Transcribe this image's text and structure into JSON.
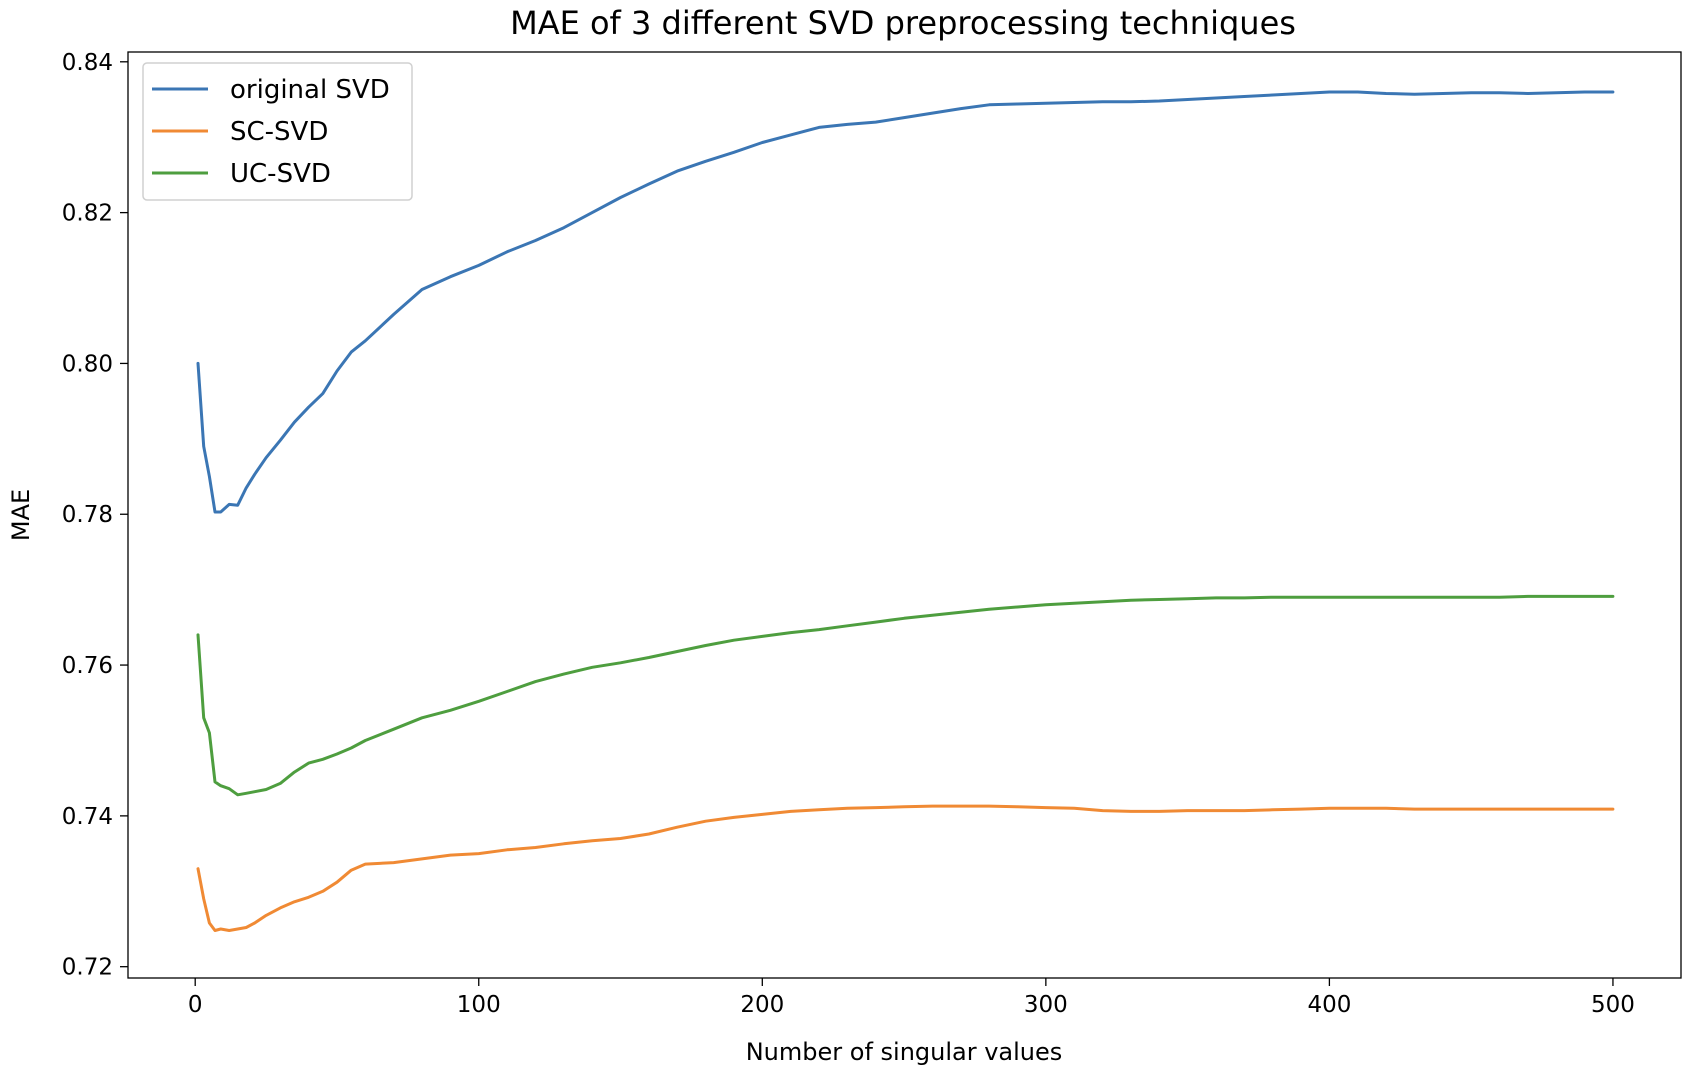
{
  "chart_data": {
    "type": "line",
    "title": "MAE of 3 different SVD preprocessing techniques",
    "xlabel": "Number of singular values",
    "ylabel": "MAE",
    "xlim": [
      -23.7,
      524
    ],
    "ylim": [
      0.7185,
      0.8413
    ],
    "x_ticks": [
      0,
      100,
      200,
      300,
      400,
      500
    ],
    "x_tick_labels": [
      "0",
      "100",
      "200",
      "300",
      "400",
      "500"
    ],
    "y_ticks": [
      0.72,
      0.74,
      0.76,
      0.78,
      0.8,
      0.82,
      0.84
    ],
    "y_tick_labels": [
      "0.72",
      "0.74",
      "0.76",
      "0.78",
      "0.80",
      "0.82",
      "0.84"
    ],
    "grid": false,
    "legend_position": "upper-left",
    "series": [
      {
        "name": "original SVD",
        "color": "#3b76b4",
        "x": [
          1,
          3,
          5,
          7,
          9,
          12,
          15,
          18,
          21,
          25,
          30,
          35,
          40,
          45,
          50,
          55,
          60,
          70,
          80,
          90,
          100,
          110,
          120,
          130,
          140,
          150,
          160,
          170,
          180,
          190,
          200,
          210,
          220,
          230,
          240,
          250,
          260,
          270,
          280,
          290,
          300,
          310,
          320,
          330,
          340,
          350,
          360,
          370,
          380,
          390,
          400,
          410,
          420,
          430,
          440,
          450,
          460,
          470,
          480,
          490,
          500
        ],
        "values": [
          0.8,
          0.789,
          0.785,
          0.7803,
          0.7803,
          0.7813,
          0.7812,
          0.7835,
          0.7853,
          0.7875,
          0.7898,
          0.7922,
          0.7942,
          0.796,
          0.799,
          0.8015,
          0.803,
          0.8065,
          0.8098,
          0.8115,
          0.813,
          0.8148,
          0.8163,
          0.818,
          0.82,
          0.822,
          0.8238,
          0.8255,
          0.8268,
          0.828,
          0.8293,
          0.8303,
          0.8313,
          0.8317,
          0.832,
          0.8326,
          0.8332,
          0.8338,
          0.8343,
          0.8344,
          0.8345,
          0.8346,
          0.8347,
          0.8347,
          0.8348,
          0.835,
          0.8352,
          0.8354,
          0.8356,
          0.8358,
          0.836,
          0.836,
          0.8358,
          0.8357,
          0.8358,
          0.8359,
          0.8359,
          0.8358,
          0.8359,
          0.836,
          0.836
        ]
      },
      {
        "name": "SC-SVD",
        "color": "#f08a34",
        "x": [
          1,
          3,
          5,
          7,
          9,
          12,
          15,
          18,
          21,
          25,
          30,
          35,
          40,
          45,
          50,
          55,
          60,
          70,
          80,
          90,
          100,
          110,
          120,
          130,
          140,
          150,
          160,
          170,
          180,
          190,
          200,
          210,
          220,
          230,
          240,
          250,
          260,
          270,
          280,
          290,
          300,
          310,
          320,
          330,
          340,
          350,
          360,
          370,
          380,
          390,
          400,
          410,
          420,
          430,
          440,
          450,
          460,
          470,
          480,
          490,
          500
        ],
        "values": [
          0.733,
          0.729,
          0.7258,
          0.7248,
          0.725,
          0.7248,
          0.725,
          0.7252,
          0.7258,
          0.7268,
          0.7278,
          0.7286,
          0.7292,
          0.73,
          0.7312,
          0.7328,
          0.7336,
          0.7338,
          0.7343,
          0.7348,
          0.735,
          0.7355,
          0.7358,
          0.7363,
          0.7367,
          0.737,
          0.7376,
          0.7385,
          0.7393,
          0.7398,
          0.7402,
          0.7406,
          0.7408,
          0.741,
          0.7411,
          0.7412,
          0.7413,
          0.7413,
          0.7413,
          0.7412,
          0.7411,
          0.741,
          0.7407,
          0.7406,
          0.7406,
          0.7407,
          0.7407,
          0.7407,
          0.7408,
          0.7409,
          0.741,
          0.741,
          0.741,
          0.7409,
          0.7409,
          0.7409,
          0.7409,
          0.7409,
          0.7409,
          0.7409,
          0.7409
        ]
      },
      {
        "name": "UC-SVD",
        "color": "#4e9e3f",
        "x": [
          1,
          3,
          5,
          7,
          9,
          12,
          15,
          18,
          21,
          25,
          30,
          35,
          40,
          45,
          50,
          55,
          60,
          70,
          80,
          90,
          100,
          110,
          120,
          130,
          140,
          150,
          160,
          170,
          180,
          190,
          200,
          210,
          220,
          230,
          240,
          250,
          260,
          270,
          280,
          290,
          300,
          310,
          320,
          330,
          340,
          350,
          360,
          370,
          380,
          390,
          400,
          410,
          420,
          430,
          440,
          450,
          460,
          470,
          480,
          490,
          500
        ],
        "values": [
          0.764,
          0.753,
          0.751,
          0.7445,
          0.744,
          0.7436,
          0.7428,
          0.743,
          0.7432,
          0.7435,
          0.7443,
          0.7458,
          0.747,
          0.7475,
          0.7482,
          0.749,
          0.75,
          0.7515,
          0.753,
          0.754,
          0.7552,
          0.7565,
          0.7578,
          0.7588,
          0.7597,
          0.7603,
          0.761,
          0.7618,
          0.7626,
          0.7633,
          0.7638,
          0.7643,
          0.7647,
          0.7652,
          0.7657,
          0.7662,
          0.7666,
          0.767,
          0.7674,
          0.7677,
          0.768,
          0.7682,
          0.7684,
          0.7686,
          0.7687,
          0.7688,
          0.7689,
          0.7689,
          0.769,
          0.769,
          0.769,
          0.769,
          0.769,
          0.769,
          0.769,
          0.769,
          0.769,
          0.7691,
          0.7691,
          0.7691,
          0.7691
        ]
      }
    ]
  }
}
